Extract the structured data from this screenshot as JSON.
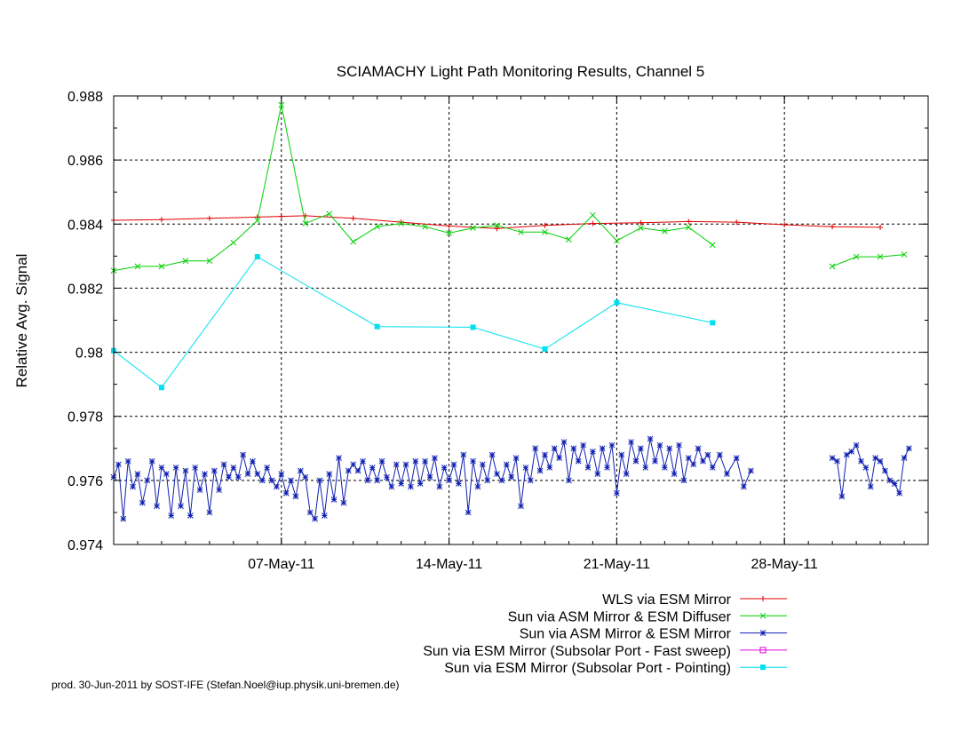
{
  "chart_data": {
    "type": "line",
    "title": "SCIAMACHY Light Path Monitoring Results, Channel 5",
    "ylabel": "Relative Avg. Signal",
    "xlabel": "",
    "x_axis": {
      "type": "date",
      "range": [
        "2011-04-30",
        "2011-06-03"
      ],
      "ticks": [
        {
          "date": "2011-05-07",
          "label": "07-May-11"
        },
        {
          "date": "2011-05-14",
          "label": "14-May-11"
        },
        {
          "date": "2011-05-21",
          "label": "21-May-11"
        },
        {
          "date": "2011-05-28",
          "label": "28-May-11"
        }
      ]
    },
    "y_axis": {
      "range": [
        0.974,
        0.988
      ],
      "ticks": [
        "0.974",
        "0.976",
        "0.978",
        "0.98",
        "0.982",
        "0.984",
        "0.986",
        "0.988"
      ]
    },
    "grid": true,
    "legend_position": "bottom-right, below plot",
    "series": [
      {
        "name": "WLS via ESM Mirror",
        "color": "#e00000",
        "marker": "plus",
        "points": [
          [
            "2011-04-30",
            0.98412
          ],
          [
            "2011-05-02",
            0.98414
          ],
          [
            "2011-05-04",
            0.98418
          ],
          [
            "2011-05-06",
            0.98422
          ],
          [
            "2011-05-07",
            0.98424
          ],
          [
            "2011-05-08",
            0.98426
          ],
          [
            "2011-05-10",
            0.98418
          ],
          [
            "2011-05-12",
            0.98406
          ],
          [
            "2011-05-14",
            0.98394
          ],
          [
            "2011-05-16",
            0.98386
          ],
          [
            "2011-05-18",
            0.98396
          ],
          [
            "2011-05-20",
            0.98402
          ],
          [
            "2011-05-22",
            0.98404
          ],
          [
            "2011-05-24",
            0.98408
          ],
          [
            "2011-05-26",
            0.98406
          ],
          [
            "2011-05-28",
            0.98398
          ],
          [
            "2011-05-30",
            0.98392
          ],
          [
            "2011-06-01",
            0.9839
          ]
        ]
      },
      {
        "name": "Sun via ASM Mirror & ESM Diffuser",
        "color": "#00d000",
        "marker": "x",
        "points": [
          [
            "2011-04-30",
            0.98255
          ],
          [
            "2011-05-01",
            0.98268
          ],
          [
            "2011-05-02",
            0.98268
          ],
          [
            "2011-05-03",
            0.98285
          ],
          [
            "2011-05-04",
            0.98285
          ],
          [
            "2011-05-05",
            0.98342
          ],
          [
            "2011-05-06",
            0.98411
          ],
          [
            "2011-05-07",
            0.98772
          ],
          [
            "2011-05-08",
            0.98402
          ],
          [
            "2011-05-09",
            0.98432
          ],
          [
            "2011-05-10",
            0.98345
          ],
          [
            "2011-05-11",
            0.98392
          ],
          [
            "2011-05-12",
            0.98402
          ],
          [
            "2011-05-13",
            0.98392
          ],
          [
            "2011-05-14",
            0.98372
          ],
          [
            "2011-05-15",
            0.98388
          ],
          [
            "2011-05-16",
            0.98396
          ],
          [
            "2011-05-17",
            0.98375
          ],
          [
            "2011-05-18",
            0.98375
          ],
          [
            "2011-05-19",
            0.98352
          ],
          [
            "2011-05-20",
            0.98428
          ],
          [
            "2011-05-21",
            0.98348
          ],
          [
            "2011-05-22",
            0.98388
          ],
          [
            "2011-05-23",
            0.98378
          ],
          [
            "2011-05-24",
            0.9839
          ],
          [
            "2011-05-25",
            0.98335
          ],
          null,
          [
            "2011-05-30",
            0.98268
          ],
          [
            "2011-05-31",
            0.98298
          ],
          [
            "2011-06-01",
            0.98298
          ],
          [
            "2011-06-02",
            0.98305
          ]
        ]
      },
      {
        "name": "Sun via ASM Mirror & ESM Mirror",
        "color": "#1020b0",
        "marker": "star",
        "points": [
          [
            "2011-04-30",
            0.9761
          ],
          [
            "2011-04-30.2",
            0.9765
          ],
          [
            "2011-04-30.4",
            0.9748
          ],
          [
            "2011-04-30.6",
            0.9766
          ],
          [
            "2011-04-30.8",
            0.9758
          ],
          [
            "2011-05-01",
            0.9762
          ],
          [
            "2011-05-01.2",
            0.9753
          ],
          [
            "2011-05-01.4",
            0.976
          ],
          [
            "2011-05-01.6",
            0.9766
          ],
          [
            "2011-05-01.8",
            0.9752
          ],
          [
            "2011-05-02",
            0.9764
          ],
          [
            "2011-05-02.2",
            0.9762
          ],
          [
            "2011-05-02.4",
            0.9749
          ],
          [
            "2011-05-02.6",
            0.9764
          ],
          [
            "2011-05-02.8",
            0.9752
          ],
          [
            "2011-05-03",
            0.9763
          ],
          [
            "2011-05-03.2",
            0.9749
          ],
          [
            "2011-05-03.4",
            0.9764
          ],
          [
            "2011-05-03.6",
            0.9757
          ],
          [
            "2011-05-03.8",
            0.9762
          ],
          [
            "2011-05-04",
            0.975
          ],
          [
            "2011-05-04.2",
            0.9763
          ],
          [
            "2011-05-04.4",
            0.9757
          ],
          [
            "2011-05-04.6",
            0.9765
          ],
          [
            "2011-05-04.8",
            0.9761
          ],
          [
            "2011-05-05",
            0.9764
          ],
          [
            "2011-05-05.2",
            0.9761
          ],
          [
            "2011-05-05.4",
            0.9768
          ],
          [
            "2011-05-05.6",
            0.9762
          ],
          [
            "2011-05-05.8",
            0.9766
          ],
          [
            "2011-05-06",
            0.9762
          ],
          [
            "2011-05-06.2",
            0.976
          ],
          [
            "2011-05-06.4",
            0.9764
          ],
          [
            "2011-05-06.6",
            0.976
          ],
          [
            "2011-05-06.8",
            0.9758
          ],
          [
            "2011-05-07",
            0.9762
          ],
          [
            "2011-05-07.2",
            0.9756
          ],
          [
            "2011-05-07.4",
            0.976
          ],
          [
            "2011-05-07.6",
            0.9755
          ],
          [
            "2011-05-07.8",
            0.9763
          ],
          [
            "2011-05-08",
            0.9761
          ],
          [
            "2011-05-08.2",
            0.975
          ],
          [
            "2011-05-08.4",
            0.9748
          ],
          [
            "2011-05-08.6",
            0.976
          ],
          [
            "2011-05-08.8",
            0.9749
          ],
          [
            "2011-05-09",
            0.9762
          ],
          [
            "2011-05-09.2",
            0.9754
          ],
          [
            "2011-05-09.4",
            0.9767
          ],
          [
            "2011-05-09.6",
            0.9753
          ],
          [
            "2011-05-09.8",
            0.9763
          ],
          [
            "2011-05-10",
            0.9765
          ],
          [
            "2011-05-10.2",
            0.9763
          ],
          [
            "2011-05-10.4",
            0.9766
          ],
          [
            "2011-05-10.6",
            0.976
          ],
          [
            "2011-05-10.8",
            0.9764
          ],
          [
            "2011-05-11",
            0.976
          ],
          [
            "2011-05-11.2",
            0.9766
          ],
          [
            "2011-05-11.4",
            0.9761
          ],
          [
            "2011-05-11.6",
            0.9758
          ],
          [
            "2011-05-11.8",
            0.9765
          ],
          [
            "2011-05-12",
            0.9759
          ],
          [
            "2011-05-12.2",
            0.9765
          ],
          [
            "2011-05-12.4",
            0.9758
          ],
          [
            "2011-05-12.6",
            0.9766
          ],
          [
            "2011-05-12.8",
            0.9759
          ],
          [
            "2011-05-13",
            0.9766
          ],
          [
            "2011-05-13.2",
            0.9761
          ],
          [
            "2011-05-13.4",
            0.9767
          ],
          [
            "2011-05-13.6",
            0.9758
          ],
          [
            "2011-05-13.8",
            0.9764
          ],
          [
            "2011-05-14",
            0.976
          ],
          [
            "2011-05-14.2",
            0.9765
          ],
          [
            "2011-05-14.4",
            0.9759
          ],
          [
            "2011-05-14.6",
            0.9768
          ],
          [
            "2011-05-14.8",
            0.975
          ],
          [
            "2011-05-15",
            0.9766
          ],
          [
            "2011-05-15.2",
            0.9758
          ],
          [
            "2011-05-15.4",
            0.9765
          ],
          [
            "2011-05-15.6",
            0.976
          ],
          [
            "2011-05-15.8",
            0.9768
          ],
          [
            "2011-05-16",
            0.9762
          ],
          [
            "2011-05-16.2",
            0.976
          ],
          [
            "2011-05-16.4",
            0.9765
          ],
          [
            "2011-05-16.6",
            0.9761
          ],
          [
            "2011-05-16.8",
            0.9767
          ],
          [
            "2011-05-17",
            0.9752
          ],
          [
            "2011-05-17.2",
            0.9764
          ],
          [
            "2011-05-17.4",
            0.976
          ],
          [
            "2011-05-17.6",
            0.977
          ],
          [
            "2011-05-17.8",
            0.9763
          ],
          [
            "2011-05-18",
            0.9768
          ],
          [
            "2011-05-18.2",
            0.9764
          ],
          [
            "2011-05-18.4",
            0.977
          ],
          [
            "2011-05-18.6",
            0.9767
          ],
          [
            "2011-05-18.8",
            0.9772
          ],
          [
            "2011-05-19",
            0.976
          ],
          [
            "2011-05-19.2",
            0.977
          ],
          [
            "2011-05-19.4",
            0.9766
          ],
          [
            "2011-05-19.6",
            0.9771
          ],
          [
            "2011-05-19.8",
            0.9764
          ],
          [
            "2011-05-20",
            0.9769
          ],
          [
            "2011-05-20.2",
            0.9762
          ],
          [
            "2011-05-20.4",
            0.977
          ],
          [
            "2011-05-20.6",
            0.9764
          ],
          [
            "2011-05-20.8",
            0.9771
          ],
          [
            "2011-05-21",
            0.9756
          ],
          [
            "2011-05-21.2",
            0.9768
          ],
          [
            "2011-05-21.4",
            0.9762
          ],
          [
            "2011-05-21.6",
            0.9772
          ],
          [
            "2011-05-21.8",
            0.9766
          ],
          [
            "2011-05-22",
            0.977
          ],
          [
            "2011-05-22.2",
            0.9764
          ],
          [
            "2011-05-22.4",
            0.9773
          ],
          [
            "2011-05-22.6",
            0.9766
          ],
          [
            "2011-05-22.8",
            0.9771
          ],
          [
            "2011-05-23",
            0.9764
          ],
          [
            "2011-05-23.2",
            0.977
          ],
          [
            "2011-05-23.4",
            0.9762
          ],
          [
            "2011-05-23.6",
            0.9771
          ],
          [
            "2011-05-23.8",
            0.976
          ],
          [
            "2011-05-24",
            0.9767
          ],
          [
            "2011-05-24.2",
            0.9765
          ],
          [
            "2011-05-24.4",
            0.977
          ],
          [
            "2011-05-24.6",
            0.9766
          ],
          [
            "2011-05-24.8",
            0.9768
          ],
          [
            "2011-05-25",
            0.9764
          ],
          [
            "2011-05-25.3",
            0.9768
          ],
          [
            "2011-05-25.6",
            0.9762
          ],
          [
            "2011-05-26",
            0.9767
          ],
          [
            "2011-05-26.3",
            0.9758
          ],
          [
            "2011-05-26.6",
            0.9763
          ],
          null,
          [
            "2011-05-30",
            0.9767
          ],
          [
            "2011-05-30.2",
            0.9766
          ],
          [
            "2011-05-30.4",
            0.9755
          ],
          [
            "2011-05-30.6",
            0.9768
          ],
          [
            "2011-05-30.8",
            0.9769
          ],
          [
            "2011-05-31",
            0.9771
          ],
          [
            "2011-05-31.2",
            0.9766
          ],
          [
            "2011-05-31.4",
            0.9764
          ],
          [
            "2011-05-31.6",
            0.9758
          ],
          [
            "2011-05-31.8",
            0.9767
          ],
          [
            "2011-06-01",
            0.9766
          ],
          [
            "2011-06-01.2",
            0.9763
          ],
          [
            "2011-06-01.4",
            0.976
          ],
          [
            "2011-06-01.6",
            0.9759
          ],
          [
            "2011-06-01.8",
            0.9756
          ],
          [
            "2011-06-02",
            0.9767
          ],
          [
            "2011-06-02.2",
            0.977
          ]
        ]
      },
      {
        "name": "Sun via ESM Mirror (Subsolar Port - Fast sweep)",
        "color": "#e000e0",
        "marker": "open-square",
        "points": []
      },
      {
        "name": "Sun via ESM Mirror (Subsolar Port - Pointing)",
        "color": "#00e0f0",
        "marker": "filled-square",
        "points": [
          [
            "2011-04-30",
            0.98005
          ],
          [
            "2011-05-02",
            0.9789
          ],
          [
            "2011-05-06",
            0.98298
          ],
          [
            "2011-05-11",
            0.9808
          ],
          [
            "2011-05-15",
            0.98078
          ],
          [
            "2011-05-18",
            0.9801
          ],
          [
            "2011-05-21",
            0.98155
          ],
          [
            "2011-05-25",
            0.98092
          ]
        ]
      }
    ]
  },
  "footer": "prod. 30-Jun-2011 by SOST-IFE (Stefan.Noel@iup.physik.uni-bremen.de)"
}
